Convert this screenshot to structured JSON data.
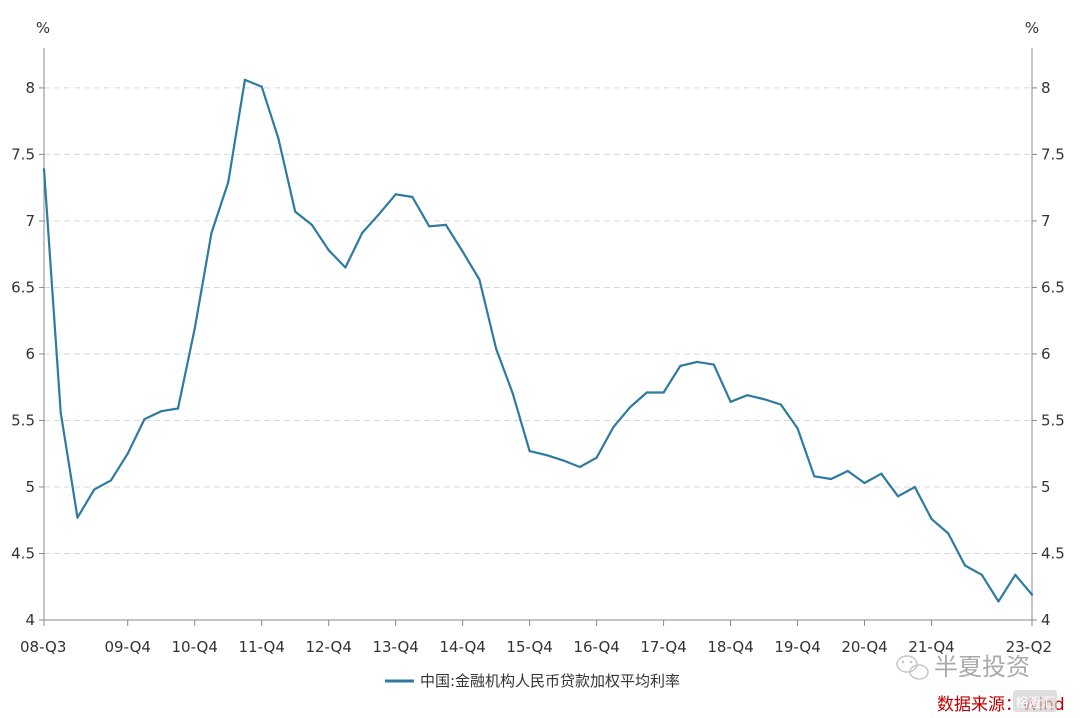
{
  "chart_data": {
    "type": "line",
    "unit_left": "%",
    "unit_right": "%",
    "ylim": [
      4,
      8.3
    ],
    "y_ticks": [
      4,
      4.5,
      5,
      5.5,
      6,
      6.5,
      7,
      7.5,
      8
    ],
    "y_tick_labels": [
      "4",
      "4.5",
      "5",
      "5.5",
      "6",
      "6.5",
      "7",
      "7.5",
      "8"
    ],
    "x_tick_labels": [
      "08-Q3",
      "09-Q4",
      "10-Q4",
      "11-Q4",
      "12-Q4",
      "13-Q4",
      "14-Q4",
      "15-Q4",
      "16-Q4",
      "17-Q4",
      "18-Q4",
      "19-Q4",
      "20-Q4",
      "21-Q4",
      "23-Q2"
    ],
    "x_tick_index": [
      0,
      5,
      9,
      13,
      17,
      21,
      25,
      29,
      33,
      37,
      41,
      45,
      49,
      53,
      59
    ],
    "grid": true,
    "legend_position": "bottom",
    "series": [
      {
        "name": "中国:金融机构人民币贷款加权平均利率",
        "color": "#2e7ba0",
        "values": [
          7.39,
          5.56,
          4.77,
          4.98,
          5.05,
          5.25,
          5.51,
          5.57,
          5.59,
          6.19,
          6.91,
          7.29,
          8.06,
          8.01,
          7.62,
          7.07,
          6.97,
          6.78,
          6.65,
          6.91,
          7.05,
          7.2,
          7.18,
          6.96,
          6.97,
          6.77,
          6.56,
          6.04,
          5.7,
          5.27,
          5.24,
          5.2,
          5.15,
          5.22,
          5.45,
          5.6,
          5.71,
          5.71,
          5.91,
          5.94,
          5.92,
          5.64,
          5.69,
          5.66,
          5.62,
          5.44,
          5.08,
          5.06,
          5.12,
          5.03,
          5.1,
          4.93,
          5.0,
          4.76,
          4.65,
          4.41,
          4.34,
          4.14,
          4.34,
          4.19
        ]
      }
    ]
  },
  "watermark": {
    "brand": "半夏投资",
    "source": "数据来源：Wind",
    "wind_logo": "格隆汇"
  }
}
